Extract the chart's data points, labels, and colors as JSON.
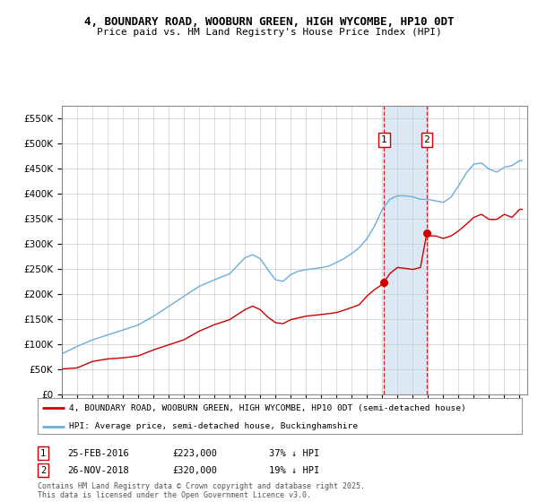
{
  "title_line1": "4, BOUNDARY ROAD, WOOBURN GREEN, HIGH WYCOMBE, HP10 0DT",
  "title_line2": "Price paid vs. HM Land Registry's House Price Index (HPI)",
  "background_color": "#ffffff",
  "plot_bg_color": "#ffffff",
  "grid_color": "#cccccc",
  "hpi_color": "#6baed6",
  "price_color": "#cc0000",
  "sale1_x": 2016.125,
  "sale1_price": 223000,
  "sale2_x": 2018.917,
  "sale2_price": 320000,
  "legend_line1": "4, BOUNDARY ROAD, WOOBURN GREEN, HIGH WYCOMBE, HP10 0DT (semi-detached house)",
  "legend_line2": "HPI: Average price, semi-detached house, Buckinghamshire",
  "footer": "Contains HM Land Registry data © Crown copyright and database right 2025.\nThis data is licensed under the Open Government Licence v3.0.",
  "ylim": [
    0,
    575000
  ],
  "yticks": [
    0,
    50000,
    100000,
    150000,
    200000,
    250000,
    300000,
    350000,
    400000,
    450000,
    500000,
    550000
  ],
  "hpi_anchors_x": [
    1995.0,
    1996.0,
    1997.0,
    1998.0,
    1999.0,
    2000.0,
    2001.0,
    2002.0,
    2003.0,
    2004.0,
    2005.0,
    2006.0,
    2007.0,
    2007.5,
    2008.0,
    2008.5,
    2009.0,
    2009.5,
    2010.0,
    2010.5,
    2011.0,
    2011.5,
    2012.0,
    2012.5,
    2013.0,
    2013.5,
    2014.0,
    2014.5,
    2015.0,
    2015.5,
    2016.0,
    2016.5,
    2017.0,
    2017.5,
    2018.0,
    2018.5,
    2019.0,
    2019.5,
    2020.0,
    2020.5,
    2021.0,
    2021.5,
    2022.0,
    2022.5,
    2023.0,
    2023.5,
    2024.0,
    2024.5,
    2025.0
  ],
  "hpi_anchors_y": [
    80000,
    95000,
    108000,
    118000,
    128000,
    138000,
    155000,
    175000,
    195000,
    215000,
    228000,
    240000,
    272000,
    278000,
    270000,
    248000,
    228000,
    225000,
    238000,
    245000,
    248000,
    250000,
    252000,
    255000,
    262000,
    270000,
    280000,
    292000,
    310000,
    335000,
    368000,
    388000,
    395000,
    395000,
    393000,
    388000,
    388000,
    385000,
    382000,
    392000,
    415000,
    440000,
    458000,
    460000,
    448000,
    442000,
    452000,
    455000,
    465000
  ],
  "price_anchors_x": [
    1995.0,
    1996.0,
    1997.0,
    1998.0,
    1999.0,
    2000.0,
    2001.0,
    2002.0,
    2003.0,
    2004.0,
    2005.0,
    2006.0,
    2007.0,
    2007.5,
    2008.0,
    2008.5,
    2009.0,
    2009.5,
    2010.0,
    2011.0,
    2012.0,
    2013.0,
    2014.0,
    2014.5,
    2015.0,
    2015.5,
    2016.0,
    2016.125,
    2016.5,
    2017.0,
    2017.5,
    2018.0,
    2018.5,
    2018.917,
    2019.0,
    2019.5,
    2020.0,
    2020.5,
    2021.0,
    2021.5,
    2022.0,
    2022.5,
    2023.0,
    2023.5,
    2024.0,
    2024.5,
    2025.0
  ],
  "price_anchors_y": [
    50000,
    52000,
    65000,
    70000,
    72000,
    76000,
    88000,
    98000,
    108000,
    125000,
    138000,
    148000,
    168000,
    175000,
    168000,
    153000,
    142000,
    140000,
    148000,
    155000,
    158000,
    162000,
    172000,
    178000,
    195000,
    208000,
    218000,
    223000,
    240000,
    252000,
    250000,
    248000,
    252000,
    320000,
    315000,
    315000,
    310000,
    315000,
    325000,
    338000,
    352000,
    358000,
    348000,
    348000,
    358000,
    352000,
    368000
  ]
}
